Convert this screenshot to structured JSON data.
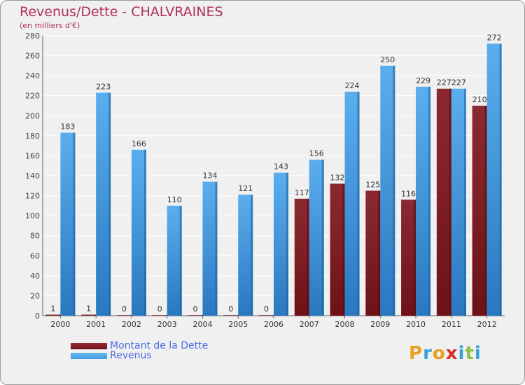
{
  "title": "Revenus/Dette - CHALVRAINES",
  "subtitle": "(en milliers d'€)",
  "chart_data": {
    "type": "bar",
    "title": "Revenus/Dette - CHALVRAINES",
    "subtitle": "(en milliers d'€)",
    "xlabel": "",
    "ylabel": "",
    "ylim": [
      0,
      280
    ],
    "ytick_step": 20,
    "grid": true,
    "legend_position": "bottom-left",
    "categories": [
      "2000",
      "2001",
      "2002",
      "2003",
      "2004",
      "2005",
      "2006",
      "2007",
      "2008",
      "2009",
      "2010",
      "2011",
      "2012"
    ],
    "series": [
      {
        "name": "Montant de la Dette",
        "color": "#6e1218",
        "values": [
          1,
          1,
          0,
          0,
          0,
          0,
          0,
          117,
          132,
          125,
          116,
          227,
          210
        ]
      },
      {
        "name": "Revenus",
        "color": "#3d9be4",
        "values": [
          183,
          223,
          166,
          110,
          134,
          121,
          143,
          156,
          224,
          250,
          229,
          227,
          272
        ]
      }
    ]
  },
  "legend": {
    "debt_label": "Montant de la Dette",
    "revenue_label": "Revenus",
    "debt_color": "#6e1218",
    "revenue_color": "#3d9be4"
  },
  "logo": {
    "text": "Proxiti",
    "colors": [
      "#e8a020",
      "#3aa0d8",
      "#e8a020",
      "#d83020",
      "#3aa0d8",
      "#8cc040",
      "#3aa0d8"
    ]
  }
}
